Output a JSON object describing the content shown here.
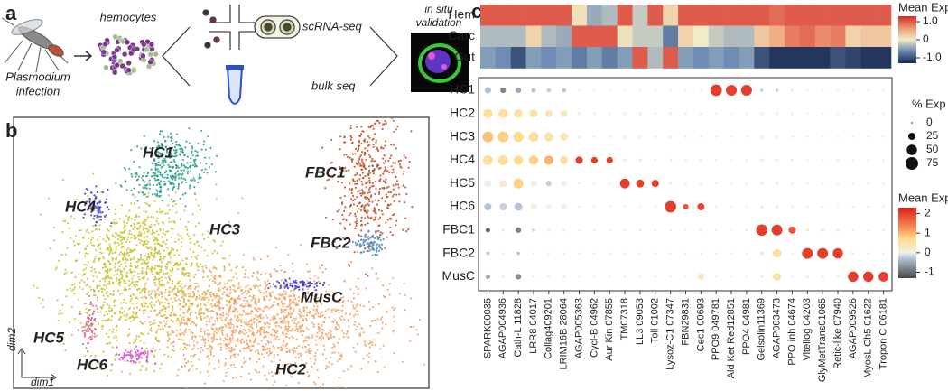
{
  "panel_a": {
    "letter": "a",
    "source_top": "Plasmodium",
    "source_bottom": "infection",
    "cells": "hemocytes",
    "method_1": "scRNA-seq",
    "method_2": "bulk seq",
    "validation_top": "in situ",
    "validation_bottom": "validation"
  },
  "panel_b": {
    "letter": "b",
    "x_label": "dim1",
    "y_label": "dim2",
    "clusters": [
      {
        "name": "HC1",
        "color": "#2a9a8c"
      },
      {
        "name": "HC2",
        "color": "#f4a062"
      },
      {
        "name": "HC3",
        "color": "#c9c12a"
      },
      {
        "name": "HC4",
        "color": "#3b3fb8"
      },
      {
        "name": "HC5",
        "color": "#d56a7e"
      },
      {
        "name": "HC6",
        "color": "#d055c8"
      },
      {
        "name": "FBC1",
        "color": "#c14a22"
      },
      {
        "name": "FBC2",
        "color": "#4a82b8"
      },
      {
        "name": "MusC",
        "color": "#3a3ad0"
      }
    ]
  },
  "chart_data": {
    "type": "dotplot",
    "letter": "c",
    "genes": [
      "SPARK00035",
      "AGAP004936",
      "Cath-L 11828",
      "LRR8 04017",
      "Collag409201",
      "LRIM16B 28064",
      "AGAP005363",
      "Cycl-B 04962",
      "Aur Kin 07855",
      "TM07318",
      "LL3 09053",
      "Toll 01002",
      "Lysoz-C1 07347",
      "FBN29831",
      "Cec1 00693",
      "PPO9 049781",
      "Ald Ket Red12851",
      "PPO4 04981",
      "Gelsolin11369",
      "AGAP003473",
      "PPO inh 04674",
      "Vitellog 04203",
      "GlyMetTrans01065",
      "Retic-like 07940",
      "AGAP009526",
      "MyosL Ch5 01622",
      "Tropon C 06181"
    ],
    "heatmap_rows": [
      "Hem",
      "Carc",
      "Gut"
    ],
    "heatmap_values": [
      [
        1,
        1,
        1,
        1,
        1,
        1,
        0.1,
        -0.4,
        -0.3,
        1,
        -0.2,
        1,
        0.2,
        1,
        1,
        1,
        1,
        1,
        1,
        0.9,
        1,
        1,
        1,
        1,
        1,
        1,
        1
      ],
      [
        -0.3,
        -0.3,
        -0.3,
        0.2,
        -0.3,
        -0.4,
        1,
        1,
        1,
        0.1,
        -0.2,
        -0.2,
        -0.7,
        0.2,
        0,
        -0.2,
        -0.3,
        -0.3,
        0.3,
        0.5,
        0.8,
        0.9,
        0.7,
        0.8,
        0.2,
        0.3,
        0.3
      ],
      [
        -0.5,
        -0.6,
        -1,
        -0.5,
        -0.6,
        -0.5,
        -0.7,
        -0.5,
        -0.7,
        -0.5,
        1,
        -0.3,
        1,
        -0.5,
        -0.6,
        -0.5,
        -0.6,
        -0.5,
        -1,
        -1.2,
        -1.2,
        -1.2,
        -1.2,
        -1,
        -1.1,
        -1.2,
        -1.2
      ]
    ],
    "heat_legend_title": "Mean Exp",
    "heat_lim": [
      -1.3,
      1.3
    ],
    "heat_ticks": [
      {
        "value": 1,
        "label": "1.0"
      },
      0,
      {
        "value": -1,
        "label": "-1.0"
      }
    ],
    "dot_rows": [
      "HC1",
      "HC2",
      "HC3",
      "HC4",
      "HC5",
      "HC6",
      "FBC1",
      "FBC2",
      "MusC"
    ],
    "pct": [
      [
        20,
        15,
        15,
        10,
        10,
        8,
        3,
        3,
        3,
        3,
        3,
        3,
        3,
        3,
        3,
        62,
        55,
        55,
        5,
        5,
        5,
        3,
        3,
        3,
        3,
        3,
        3
      ],
      [
        40,
        40,
        35,
        30,
        25,
        20,
        5,
        4,
        4,
        5,
        5,
        4,
        5,
        4,
        4,
        3,
        3,
        3,
        5,
        5,
        4,
        3,
        3,
        3,
        3,
        3,
        3
      ],
      [
        55,
        55,
        50,
        45,
        40,
        30,
        5,
        4,
        4,
        5,
        5,
        4,
        5,
        4,
        4,
        3,
        3,
        3,
        5,
        5,
        4,
        3,
        3,
        3,
        3,
        3,
        3
      ],
      [
        45,
        45,
        40,
        40,
        40,
        30,
        25,
        20,
        20,
        5,
        5,
        4,
        5,
        4,
        4,
        3,
        3,
        3,
        5,
        5,
        4,
        3,
        3,
        3,
        3,
        3,
        3
      ],
      [
        25,
        25,
        45,
        20,
        15,
        15,
        3,
        3,
        3,
        45,
        30,
        25,
        5,
        4,
        4,
        3,
        3,
        3,
        5,
        5,
        4,
        3,
        3,
        3,
        3,
        3,
        3
      ],
      [
        25,
        25,
        30,
        20,
        10,
        15,
        3,
        3,
        3,
        3,
        3,
        3,
        62,
        15,
        25,
        3,
        3,
        3,
        5,
        5,
        4,
        3,
        3,
        3,
        3,
        3,
        3
      ],
      [
        10,
        5,
        15,
        5,
        5,
        5,
        3,
        3,
        3,
        3,
        3,
        3,
        3,
        3,
        5,
        3,
        3,
        3,
        60,
        55,
        25,
        5,
        5,
        5,
        3,
        3,
        3
      ],
      [
        5,
        3,
        5,
        3,
        3,
        3,
        3,
        3,
        3,
        3,
        3,
        3,
        3,
        3,
        3,
        3,
        3,
        3,
        8,
        35,
        3,
        55,
        55,
        50,
        3,
        3,
        3
      ],
      [
        10,
        5,
        15,
        5,
        5,
        5,
        3,
        3,
        3,
        3,
        3,
        3,
        3,
        3,
        20,
        3,
        3,
        3,
        5,
        30,
        3,
        5,
        5,
        5,
        50,
        50,
        45
      ]
    ],
    "expr": [
      [
        -0.3,
        -0.8,
        -0.5,
        -0.3,
        -0.2,
        -0.3,
        0,
        0,
        0,
        0,
        0,
        0,
        0,
        0,
        0,
        2,
        2,
        2,
        -0.2,
        -0.2,
        0,
        0,
        0,
        0,
        0,
        0,
        0
      ],
      [
        0.6,
        0.6,
        0.5,
        0.5,
        0.4,
        0.3,
        0,
        0,
        0,
        0,
        0,
        0,
        0,
        0,
        0,
        0,
        0,
        0,
        0,
        0,
        0,
        0,
        0,
        0,
        0,
        0,
        0
      ],
      [
        0.9,
        0.8,
        0.7,
        0.6,
        0.4,
        0.3,
        0,
        0,
        0,
        0,
        0,
        0,
        0,
        0,
        0,
        0,
        0,
        0,
        0,
        0,
        0,
        0,
        0,
        0,
        0,
        0,
        0
      ],
      [
        0.6,
        0.6,
        0.7,
        0.8,
        1,
        0.6,
        2,
        2,
        2,
        0,
        0,
        0,
        0,
        0,
        0,
        0,
        0,
        0,
        0,
        0,
        0,
        0,
        0,
        0,
        0,
        0,
        0
      ],
      [
        0,
        0.2,
        0.8,
        0,
        -0.2,
        0,
        0,
        0,
        0,
        2,
        2,
        2,
        0,
        0,
        0,
        0,
        0,
        0,
        0,
        0,
        0,
        0,
        0,
        0,
        0,
        0,
        0
      ],
      [
        -0.3,
        -0.2,
        -0.3,
        0,
        0,
        0,
        0,
        0,
        0,
        0,
        0,
        0,
        2,
        1.8,
        1.9,
        0,
        0,
        0,
        0,
        0,
        0,
        0,
        0,
        0,
        0,
        0,
        0
      ],
      [
        -1,
        0,
        -0.8,
        -0.2,
        0,
        0,
        0,
        0,
        0,
        0,
        0,
        0,
        0,
        0,
        0,
        0,
        0,
        0,
        2,
        2,
        1.8,
        0.3,
        0.3,
        0.2,
        0,
        0,
        0
      ],
      [
        -0.3,
        0,
        -0.3,
        0,
        0,
        0,
        0,
        0,
        0,
        0,
        0,
        0,
        0,
        0,
        0,
        0,
        0,
        0,
        0.2,
        0.6,
        0,
        2,
        2,
        2,
        0,
        0,
        0
      ],
      [
        -0.5,
        0,
        -0.7,
        0,
        0,
        0,
        0,
        0,
        0,
        0,
        0,
        0,
        0,
        0,
        0.3,
        0,
        0,
        0,
        0,
        0.5,
        0,
        0,
        0,
        0,
        2,
        2,
        2
      ]
    ],
    "size_legend_title": "% Exp",
    "size_ticks": [
      0,
      25,
      50,
      75
    ],
    "expr_legend_title": "Mean Exp",
    "expr_lim": [
      -1.3,
      2.3
    ],
    "expr_ticks": [
      2,
      1,
      0,
      -1
    ]
  }
}
